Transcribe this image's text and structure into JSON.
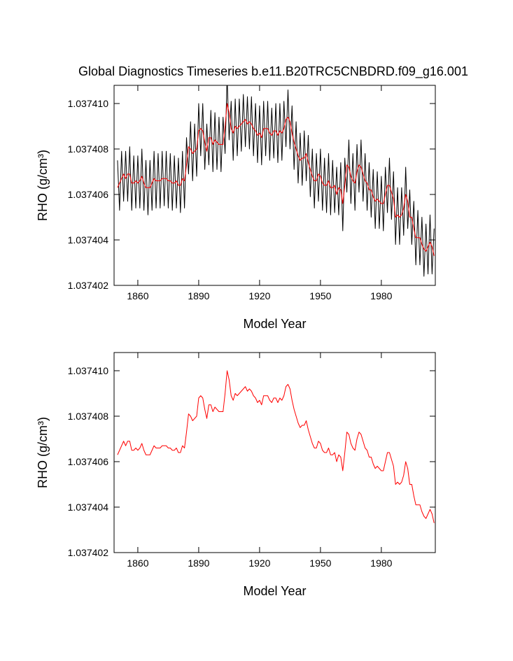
{
  "chart_data": [
    {
      "type": "line",
      "title": "Global Diagnostics Timeseries b.e11.B20TRC5CNBDRD.f09_g16.001",
      "x_label": "Model Year",
      "y_label": "RHO (g/cm³)",
      "xlim": [
        1848.3,
        2006.6
      ],
      "xticks": [
        1860,
        1890,
        1920,
        1950,
        1980
      ],
      "ylim": [
        1.037402,
        1.0374108
      ],
      "yticks": [
        1.037402,
        1.037404,
        1.037406,
        1.037408,
        {
          "value": 1.03741,
          "label": "1.037410"
        }
      ],
      "x": [
        1850,
        1851,
        1852,
        1853,
        1854,
        1855,
        1856,
        1857,
        1858,
        1859,
        1860,
        1861,
        1862,
        1863,
        1864,
        1865,
        1866,
        1867,
        1868,
        1869,
        1870,
        1871,
        1872,
        1873,
        1874,
        1875,
        1876,
        1877,
        1878,
        1879,
        1880,
        1881,
        1882,
        1883,
        1884,
        1885,
        1886,
        1887,
        1888,
        1889,
        1890,
        1891,
        1892,
        1893,
        1894,
        1895,
        1896,
        1897,
        1898,
        1899,
        1900,
        1901,
        1902,
        1903,
        1904,
        1905,
        1906,
        1907,
        1908,
        1909,
        1910,
        1911,
        1912,
        1913,
        1914,
        1915,
        1916,
        1917,
        1918,
        1919,
        1920,
        1921,
        1922,
        1923,
        1924,
        1925,
        1926,
        1927,
        1928,
        1929,
        1930,
        1931,
        1932,
        1933,
        1934,
        1935,
        1936,
        1937,
        1938,
        1939,
        1940,
        1941,
        1942,
        1943,
        1944,
        1945,
        1946,
        1947,
        1948,
        1949,
        1950,
        1951,
        1952,
        1953,
        1954,
        1955,
        1956,
        1957,
        1958,
        1959,
        1960,
        1961,
        1962,
        1963,
        1964,
        1965,
        1966,
        1967,
        1968,
        1969,
        1970,
        1971,
        1972,
        1973,
        1974,
        1975,
        1976,
        1977,
        1978,
        1979,
        1980,
        1981,
        1982,
        1983,
        1984,
        1985,
        1986,
        1987,
        1988,
        1989,
        1990,
        1991,
        1992,
        1993,
        1994,
        1995,
        1996,
        1997,
        1998,
        1999,
        2000,
        2001,
        2002,
        2003,
        2004,
        2005,
        2006
      ],
      "series": [
        {
          "color": "#000000",
          "values": [
            1.0374075,
            1.0374053,
            1.0374079,
            1.0374057,
            1.0374079,
            1.0374057,
            1.0374081,
            1.0374053,
            1.0374077,
            1.0374054,
            1.0374077,
            1.0374054,
            1.037408,
            1.0374053,
            1.0374075,
            1.0374051,
            1.0374075,
            1.0374053,
            1.0374079,
            1.0374054,
            1.0374078,
            1.0374054,
            1.0374079,
            1.0374055,
            1.0374079,
            1.0374054,
            1.0374078,
            1.0374053,
            1.0374077,
            1.0374054,
            1.0374076,
            1.0374052,
            1.0374079,
            1.0374054,
            1.0374085,
            1.0374069,
            1.0374092,
            1.0374066,
            1.0374091,
            1.0374068,
            1.03741,
            1.0374077,
            1.03741,
            1.0374071,
            1.0374091,
            1.0374073,
            1.0374097,
            1.037407,
            1.0374096,
            1.0374071,
            1.0374094,
            1.037407,
            1.0374094,
            1.0374078,
            1.0374112,
            1.0374084,
            1.0374101,
            1.0374075,
            1.0374102,
            1.0374077,
            1.0374102,
            1.0374079,
            1.0374104,
            1.0374081,
            1.0374103,
            1.037408,
            1.0374103,
            1.0374077,
            1.03741,
            1.0374074,
            1.0374099,
            1.0374073,
            1.0374101,
            1.0374077,
            1.0374101,
            1.0374075,
            1.0374098,
            1.0374076,
            1.03741,
            1.0374074,
            1.03741,
            1.0374075,
            1.0374101,
            1.0374081,
            1.0374106,
            1.037408,
            1.0374099,
            1.0374071,
            1.0374092,
            1.0374065,
            1.0374087,
            1.0374064,
            1.0374088,
            1.0374066,
            1.0374086,
            1.0374059,
            1.037408,
            1.0374054,
            1.0374078,
            1.0374057,
            1.037408,
            1.0374053,
            1.0374076,
            1.0374052,
            1.0374078,
            1.0374051,
            1.0374075,
            1.0374052,
            1.0374072,
            1.0374051,
            1.0374074,
            1.0374044,
            1.0374076,
            1.0374061,
            1.0374084,
            1.0374056,
            1.0374078,
            1.0374053,
            1.0374082,
            1.0374061,
            1.0374084,
            1.0374057,
            1.0374078,
            1.0374053,
            1.0374074,
            1.037405,
            1.0374071,
            1.0374045,
            1.037407,
            1.0374045,
            1.0374068,
            1.0374044,
            1.0374072,
            1.0374052,
            1.0374076,
            1.0374049,
            1.037407,
            1.0374038,
            1.0374063,
            1.0374038,
            1.0374063,
            1.0374042,
            1.0374072,
            1.0374045,
            1.0374062,
            1.0374038,
            1.0374057,
            1.0374029,
            1.0374053,
            1.0374029,
            1.037405,
            1.0374024,
            1.0374047,
            1.0374025,
            1.0374051,
            1.0374025,
            1.0374045
          ]
        },
        {
          "color": "#ff0000",
          "values": [
            1.0374063,
            1.0374065,
            1.0374067,
            1.0374069,
            1.0374067,
            1.0374069,
            1.0374069,
            1.0374065,
            1.0374065,
            1.0374066,
            1.0374065,
            1.0374066,
            1.0374068,
            1.0374065,
            1.0374063,
            1.0374063,
            1.0374063,
            1.0374065,
            1.0374067,
            1.0374066,
            1.0374066,
            1.0374066,
            1.0374067,
            1.0374067,
            1.0374067,
            1.0374066,
            1.0374066,
            1.0374065,
            1.0374065,
            1.0374066,
            1.0374064,
            1.0374064,
            1.0374067,
            1.0374066,
            1.0374073,
            1.0374081,
            1.037408,
            1.0374078,
            1.0374079,
            1.037408,
            1.0374088,
            1.0374089,
            1.0374088,
            1.0374083,
            1.0374079,
            1.0374085,
            1.0374085,
            1.0374082,
            1.0374084,
            1.0374083,
            1.0374082,
            1.0374082,
            1.0374082,
            1.037409,
            1.03741,
            1.0374096,
            1.0374089,
            1.0374087,
            1.037409,
            1.0374089,
            1.037409,
            1.0374091,
            1.0374092,
            1.0374093,
            1.0374091,
            1.0374092,
            1.0374091,
            1.0374089,
            1.0374088,
            1.0374086,
            1.0374087,
            1.0374085,
            1.0374089,
            1.0374089,
            1.0374089,
            1.0374087,
            1.0374086,
            1.0374088,
            1.0374088,
            1.0374086,
            1.0374088,
            1.0374087,
            1.0374089,
            1.0374093,
            1.0374094,
            1.0374092,
            1.0374087,
            1.0374083,
            1.037408,
            1.0374077,
            1.0374075,
            1.0374076,
            1.0374076,
            1.0374078,
            1.0374074,
            1.0374071,
            1.0374068,
            1.0374066,
            1.0374066,
            1.0374069,
            1.0374068,
            1.0374065,
            1.0374064,
            1.0374064,
            1.0374066,
            1.0374063,
            1.0374063,
            1.0374064,
            1.037406,
            1.0374063,
            1.0374062,
            1.0374056,
            1.0374064,
            1.0374073,
            1.0374072,
            1.0374068,
            1.0374066,
            1.0374065,
            1.037407,
            1.0374073,
            1.0374072,
            1.0374069,
            1.0374066,
            1.0374065,
            1.0374062,
            1.0374062,
            1.0374059,
            1.0374057,
            1.0374058,
            1.0374057,
            1.0374056,
            1.0374056,
            1.037406,
            1.0374064,
            1.0374064,
            1.0374061,
            1.0374058,
            1.037405,
            1.0374051,
            1.037405,
            1.0374051,
            1.0374054,
            1.037406,
            1.0374057,
            1.037405,
            1.037405,
            1.0374045,
            1.0374041,
            1.0374041,
            1.0374041,
            1.0374038,
            1.0374036,
            1.0374035,
            1.0374037,
            1.0374039,
            1.0374037,
            1.0374033
          ]
        }
      ]
    },
    {
      "type": "line",
      "x_label": "Model Year",
      "y_label": "RHO (g/cm³)",
      "xlim": [
        1848.3,
        2006.6
      ],
      "xticks": [
        1860,
        1890,
        1920,
        1950,
        1980
      ],
      "ylim": [
        1.037402,
        1.0374108
      ],
      "yticks": [
        1.037402,
        1.037404,
        1.037406,
        1.037408,
        {
          "value": 1.03741,
          "label": "1.037410"
        }
      ],
      "x": [
        1850,
        1851,
        1852,
        1853,
        1854,
        1855,
        1856,
        1857,
        1858,
        1859,
        1860,
        1861,
        1862,
        1863,
        1864,
        1865,
        1866,
        1867,
        1868,
        1869,
        1870,
        1871,
        1872,
        1873,
        1874,
        1875,
        1876,
        1877,
        1878,
        1879,
        1880,
        1881,
        1882,
        1883,
        1884,
        1885,
        1886,
        1887,
        1888,
        1889,
        1890,
        1891,
        1892,
        1893,
        1894,
        1895,
        1896,
        1897,
        1898,
        1899,
        1900,
        1901,
        1902,
        1903,
        1904,
        1905,
        1906,
        1907,
        1908,
        1909,
        1910,
        1911,
        1912,
        1913,
        1914,
        1915,
        1916,
        1917,
        1918,
        1919,
        1920,
        1921,
        1922,
        1923,
        1924,
        1925,
        1926,
        1927,
        1928,
        1929,
        1930,
        1931,
        1932,
        1933,
        1934,
        1935,
        1936,
        1937,
        1938,
        1939,
        1940,
        1941,
        1942,
        1943,
        1944,
        1945,
        1946,
        1947,
        1948,
        1949,
        1950,
        1951,
        1952,
        1953,
        1954,
        1955,
        1956,
        1957,
        1958,
        1959,
        1960,
        1961,
        1962,
        1963,
        1964,
        1965,
        1966,
        1967,
        1968,
        1969,
        1970,
        1971,
        1972,
        1973,
        1974,
        1975,
        1976,
        1977,
        1978,
        1979,
        1980,
        1981,
        1982,
        1983,
        1984,
        1985,
        1986,
        1987,
        1988,
        1989,
        1990,
        1991,
        1992,
        1993,
        1994,
        1995,
        1996,
        1997,
        1998,
        1999,
        2000,
        2001,
        2002,
        2003,
        2004,
        2005,
        2006
      ],
      "series": [
        {
          "color": "#ff0000",
          "values": [
            1.0374063,
            1.0374065,
            1.0374067,
            1.0374069,
            1.0374067,
            1.0374069,
            1.0374069,
            1.0374065,
            1.0374065,
            1.0374066,
            1.0374065,
            1.0374066,
            1.0374068,
            1.0374065,
            1.0374063,
            1.0374063,
            1.0374063,
            1.0374065,
            1.0374067,
            1.0374066,
            1.0374066,
            1.0374066,
            1.0374067,
            1.0374067,
            1.0374067,
            1.0374066,
            1.0374066,
            1.0374065,
            1.0374065,
            1.0374066,
            1.0374064,
            1.0374064,
            1.0374067,
            1.0374066,
            1.0374073,
            1.0374081,
            1.037408,
            1.0374078,
            1.0374079,
            1.037408,
            1.0374088,
            1.0374089,
            1.0374088,
            1.0374083,
            1.0374079,
            1.0374085,
            1.0374085,
            1.0374082,
            1.0374084,
            1.0374083,
            1.0374082,
            1.0374082,
            1.0374082,
            1.037409,
            1.03741,
            1.0374096,
            1.0374089,
            1.0374087,
            1.037409,
            1.0374089,
            1.037409,
            1.0374091,
            1.0374092,
            1.0374093,
            1.0374091,
            1.0374092,
            1.0374091,
            1.0374089,
            1.0374088,
            1.0374086,
            1.0374087,
            1.0374085,
            1.0374089,
            1.0374089,
            1.0374089,
            1.0374087,
            1.0374086,
            1.0374088,
            1.0374088,
            1.0374086,
            1.0374088,
            1.0374087,
            1.0374089,
            1.0374093,
            1.0374094,
            1.0374092,
            1.0374087,
            1.0374083,
            1.037408,
            1.0374077,
            1.0374075,
            1.0374076,
            1.0374076,
            1.0374078,
            1.0374074,
            1.0374071,
            1.0374068,
            1.0374066,
            1.0374066,
            1.0374069,
            1.0374068,
            1.0374065,
            1.0374064,
            1.0374064,
            1.0374066,
            1.0374063,
            1.0374063,
            1.0374064,
            1.037406,
            1.0374063,
            1.0374062,
            1.0374056,
            1.0374064,
            1.0374073,
            1.0374072,
            1.0374068,
            1.0374066,
            1.0374065,
            1.037407,
            1.0374073,
            1.0374072,
            1.0374069,
            1.0374066,
            1.0374065,
            1.0374062,
            1.0374062,
            1.0374059,
            1.0374057,
            1.0374058,
            1.0374057,
            1.0374056,
            1.0374056,
            1.037406,
            1.0374064,
            1.0374064,
            1.0374061,
            1.0374058,
            1.037405,
            1.0374051,
            1.037405,
            1.0374051,
            1.0374054,
            1.037406,
            1.0374057,
            1.037405,
            1.037405,
            1.0374045,
            1.0374041,
            1.0374041,
            1.0374041,
            1.0374038,
            1.0374036,
            1.0374035,
            1.0374037,
            1.0374039,
            1.0374037,
            1.0374033
          ]
        }
      ]
    }
  ]
}
